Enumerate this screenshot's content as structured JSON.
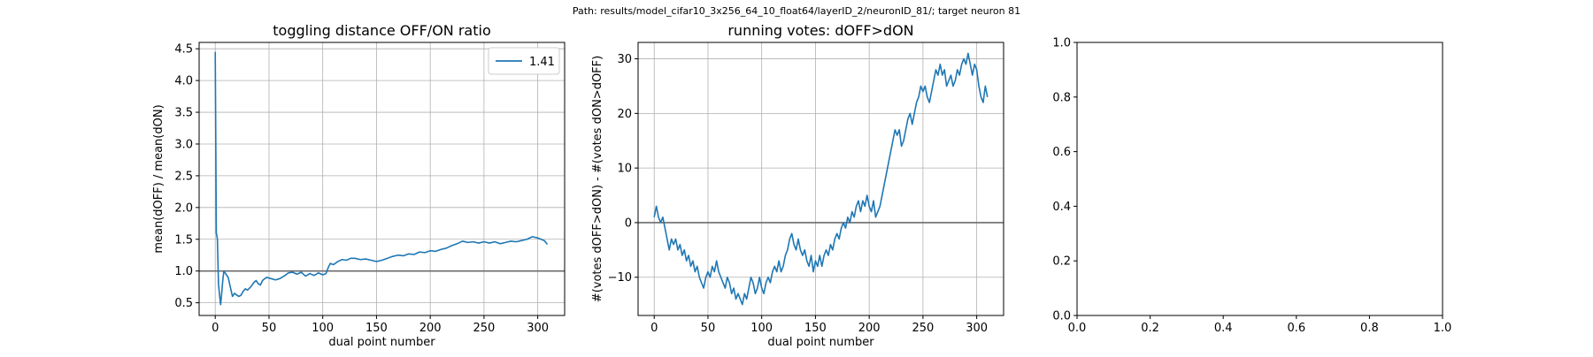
{
  "figure": {
    "suptitle": "Path: results/model_cifar10_3x256_64_10_float64/layerID_2/neuronID_81/; target neuron 81"
  },
  "chart_data": [
    {
      "type": "line",
      "title": "toggling distance OFF/ON ratio",
      "xlabel": "dual point number",
      "ylabel": "mean(dOFF) / mean(dON)",
      "xlim": [
        -15,
        325
      ],
      "ylim": [
        0.3,
        4.6
      ],
      "xticks": [
        0,
        50,
        100,
        150,
        200,
        250,
        300
      ],
      "yticks": [
        0.5,
        1.0,
        1.5,
        2.0,
        2.5,
        3.0,
        3.5,
        4.0,
        4.5
      ],
      "ytick_labels": [
        "0.5",
        "1.0",
        "1.5",
        "2.0",
        "2.5",
        "3.0",
        "3.5",
        "4.0",
        "4.5"
      ],
      "grid": true,
      "legend": "top-right",
      "reference_line": 1.0,
      "series": [
        {
          "name": "1.41",
          "color": "#1f77b4",
          "points": [
            [
              0,
              4.45
            ],
            [
              1,
              1.6
            ],
            [
              2,
              1.5
            ],
            [
              3,
              0.8
            ],
            [
              4,
              0.62
            ],
            [
              5,
              0.47
            ],
            [
              6,
              0.65
            ],
            [
              7,
              0.85
            ],
            [
              8,
              1.0
            ],
            [
              10,
              0.95
            ],
            [
              12,
              0.9
            ],
            [
              14,
              0.75
            ],
            [
              16,
              0.6
            ],
            [
              18,
              0.65
            ],
            [
              20,
              0.62
            ],
            [
              22,
              0.6
            ],
            [
              24,
              0.62
            ],
            [
              26,
              0.68
            ],
            [
              28,
              0.72
            ],
            [
              30,
              0.7
            ],
            [
              33,
              0.75
            ],
            [
              36,
              0.82
            ],
            [
              38,
              0.85
            ],
            [
              40,
              0.8
            ],
            [
              42,
              0.78
            ],
            [
              44,
              0.85
            ],
            [
              46,
              0.88
            ],
            [
              48,
              0.9
            ],
            [
              52,
              0.88
            ],
            [
              56,
              0.86
            ],
            [
              60,
              0.88
            ],
            [
              64,
              0.92
            ],
            [
              68,
              0.97
            ],
            [
              72,
              0.98
            ],
            [
              76,
              0.95
            ],
            [
              80,
              0.98
            ],
            [
              84,
              0.92
            ],
            [
              88,
              0.96
            ],
            [
              92,
              0.93
            ],
            [
              96,
              0.97
            ],
            [
              100,
              0.94
            ],
            [
              103,
              0.96
            ],
            [
              105,
              1.05
            ],
            [
              107,
              1.12
            ],
            [
              110,
              1.1
            ],
            [
              114,
              1.15
            ],
            [
              118,
              1.18
            ],
            [
              122,
              1.17
            ],
            [
              126,
              1.2
            ],
            [
              130,
              1.2
            ],
            [
              135,
              1.18
            ],
            [
              140,
              1.19
            ],
            [
              145,
              1.17
            ],
            [
              150,
              1.15
            ],
            [
              155,
              1.17
            ],
            [
              160,
              1.2
            ],
            [
              165,
              1.23
            ],
            [
              170,
              1.25
            ],
            [
              175,
              1.24
            ],
            [
              180,
              1.27
            ],
            [
              185,
              1.26
            ],
            [
              190,
              1.3
            ],
            [
              195,
              1.29
            ],
            [
              200,
              1.32
            ],
            [
              205,
              1.31
            ],
            [
              210,
              1.34
            ],
            [
              215,
              1.36
            ],
            [
              220,
              1.4
            ],
            [
              225,
              1.43
            ],
            [
              230,
              1.47
            ],
            [
              235,
              1.45
            ],
            [
              240,
              1.46
            ],
            [
              245,
              1.44
            ],
            [
              250,
              1.46
            ],
            [
              255,
              1.44
            ],
            [
              260,
              1.46
            ],
            [
              265,
              1.43
            ],
            [
              270,
              1.45
            ],
            [
              275,
              1.47
            ],
            [
              280,
              1.46
            ],
            [
              285,
              1.48
            ],
            [
              290,
              1.5
            ],
            [
              295,
              1.54
            ],
            [
              300,
              1.52
            ],
            [
              303,
              1.5
            ],
            [
              306,
              1.48
            ],
            [
              309,
              1.42
            ]
          ]
        }
      ]
    },
    {
      "type": "line",
      "title": "running votes: dOFF>dON",
      "xlabel": "dual point number",
      "ylabel": "#(votes dOFF>dON) - #(votes dON>dOFF)",
      "xlim": [
        -15,
        325
      ],
      "ylim": [
        -17,
        33
      ],
      "xticks": [
        0,
        50,
        100,
        150,
        200,
        250,
        300
      ],
      "yticks": [
        -10,
        0,
        10,
        20,
        30
      ],
      "ytick_labels": [
        "−10",
        "0",
        "10",
        "20",
        "30"
      ],
      "grid": true,
      "reference_line": 0,
      "series": [
        {
          "color": "#1f77b4",
          "points": [
            [
              0,
              1
            ],
            [
              2,
              3
            ],
            [
              4,
              1
            ],
            [
              6,
              0
            ],
            [
              8,
              1
            ],
            [
              10,
              -1
            ],
            [
              12,
              -3
            ],
            [
              14,
              -5
            ],
            [
              16,
              -3
            ],
            [
              18,
              -4
            ],
            [
              20,
              -3
            ],
            [
              22,
              -5
            ],
            [
              24,
              -4
            ],
            [
              26,
              -6
            ],
            [
              28,
              -5
            ],
            [
              30,
              -7
            ],
            [
              32,
              -6
            ],
            [
              34,
              -8
            ],
            [
              36,
              -7
            ],
            [
              38,
              -9
            ],
            [
              40,
              -8
            ],
            [
              42,
              -10
            ],
            [
              44,
              -11
            ],
            [
              46,
              -12
            ],
            [
              48,
              -10
            ],
            [
              50,
              -9
            ],
            [
              52,
              -10
            ],
            [
              54,
              -8
            ],
            [
              56,
              -9
            ],
            [
              58,
              -7
            ],
            [
              60,
              -9
            ],
            [
              62,
              -10
            ],
            [
              64,
              -11
            ],
            [
              66,
              -12
            ],
            [
              68,
              -10
            ],
            [
              70,
              -11
            ],
            [
              72,
              -13
            ],
            [
              74,
              -12
            ],
            [
              76,
              -14
            ],
            [
              78,
              -13
            ],
            [
              80,
              -14
            ],
            [
              82,
              -15
            ],
            [
              84,
              -13
            ],
            [
              86,
              -14
            ],
            [
              88,
              -12
            ],
            [
              90,
              -10
            ],
            [
              92,
              -11
            ],
            [
              94,
              -13
            ],
            [
              96,
              -12
            ],
            [
              98,
              -10
            ],
            [
              100,
              -12
            ],
            [
              102,
              -13
            ],
            [
              104,
              -11
            ],
            [
              106,
              -10
            ],
            [
              108,
              -11
            ],
            [
              110,
              -9
            ],
            [
              112,
              -8
            ],
            [
              114,
              -9
            ],
            [
              116,
              -7
            ],
            [
              118,
              -9
            ],
            [
              120,
              -8
            ],
            [
              122,
              -6
            ],
            [
              124,
              -5
            ],
            [
              126,
              -3
            ],
            [
              128,
              -2
            ],
            [
              130,
              -4
            ],
            [
              132,
              -5
            ],
            [
              134,
              -3
            ],
            [
              136,
              -5
            ],
            [
              138,
              -6
            ],
            [
              140,
              -5
            ],
            [
              142,
              -7
            ],
            [
              144,
              -8
            ],
            [
              146,
              -6
            ],
            [
              148,
              -9
            ],
            [
              150,
              -7
            ],
            [
              152,
              -8
            ],
            [
              154,
              -6
            ],
            [
              156,
              -8
            ],
            [
              158,
              -6
            ],
            [
              160,
              -5
            ],
            [
              162,
              -6
            ],
            [
              164,
              -4
            ],
            [
              166,
              -5
            ],
            [
              168,
              -3
            ],
            [
              170,
              -2
            ],
            [
              172,
              -3
            ],
            [
              174,
              -1
            ],
            [
              176,
              0
            ],
            [
              178,
              -1
            ],
            [
              180,
              1
            ],
            [
              182,
              0
            ],
            [
              184,
              2
            ],
            [
              186,
              1
            ],
            [
              188,
              3
            ],
            [
              190,
              4
            ],
            [
              192,
              2
            ],
            [
              194,
              4
            ],
            [
              196,
              3
            ],
            [
              198,
              5
            ],
            [
              200,
              3
            ],
            [
              202,
              2
            ],
            [
              204,
              4
            ],
            [
              206,
              1
            ],
            [
              208,
              2
            ],
            [
              210,
              3
            ],
            [
              212,
              5
            ],
            [
              214,
              7
            ],
            [
              216,
              9
            ],
            [
              218,
              11
            ],
            [
              220,
              13
            ],
            [
              222,
              15
            ],
            [
              224,
              17
            ],
            [
              226,
              16
            ],
            [
              228,
              17
            ],
            [
              230,
              14
            ],
            [
              232,
              15
            ],
            [
              234,
              17
            ],
            [
              236,
              19
            ],
            [
              238,
              20
            ],
            [
              240,
              18
            ],
            [
              242,
              20
            ],
            [
              244,
              22
            ],
            [
              246,
              23
            ],
            [
              248,
              25
            ],
            [
              250,
              24
            ],
            [
              252,
              25
            ],
            [
              254,
              23
            ],
            [
              256,
              22
            ],
            [
              258,
              24
            ],
            [
              260,
              26
            ],
            [
              262,
              28
            ],
            [
              264,
              27
            ],
            [
              266,
              29
            ],
            [
              268,
              27
            ],
            [
              270,
              28
            ],
            [
              272,
              25
            ],
            [
              274,
              26
            ],
            [
              276,
              27
            ],
            [
              278,
              25
            ],
            [
              280,
              26
            ],
            [
              282,
              28
            ],
            [
              284,
              27
            ],
            [
              286,
              29
            ],
            [
              288,
              30
            ],
            [
              290,
              29
            ],
            [
              292,
              31
            ],
            [
              294,
              29
            ],
            [
              296,
              27
            ],
            [
              298,
              29
            ],
            [
              300,
              28
            ],
            [
              302,
              25
            ],
            [
              304,
              23
            ],
            [
              306,
              22
            ],
            [
              308,
              25
            ],
            [
              310,
              23
            ]
          ]
        }
      ]
    },
    {
      "type": "line",
      "xlim": [
        0,
        1
      ],
      "ylim": [
        0,
        1
      ],
      "xticks": [
        0.0,
        0.2,
        0.4,
        0.6,
        0.8,
        1.0
      ],
      "yticks": [
        0.0,
        0.2,
        0.4,
        0.6,
        0.8,
        1.0
      ],
      "xtick_labels": [
        "0.0",
        "0.2",
        "0.4",
        "0.6",
        "0.8",
        "1.0"
      ],
      "ytick_labels": [
        "0.0",
        "0.2",
        "0.4",
        "0.6",
        "0.8",
        "1.0"
      ],
      "grid": false,
      "series": []
    }
  ]
}
